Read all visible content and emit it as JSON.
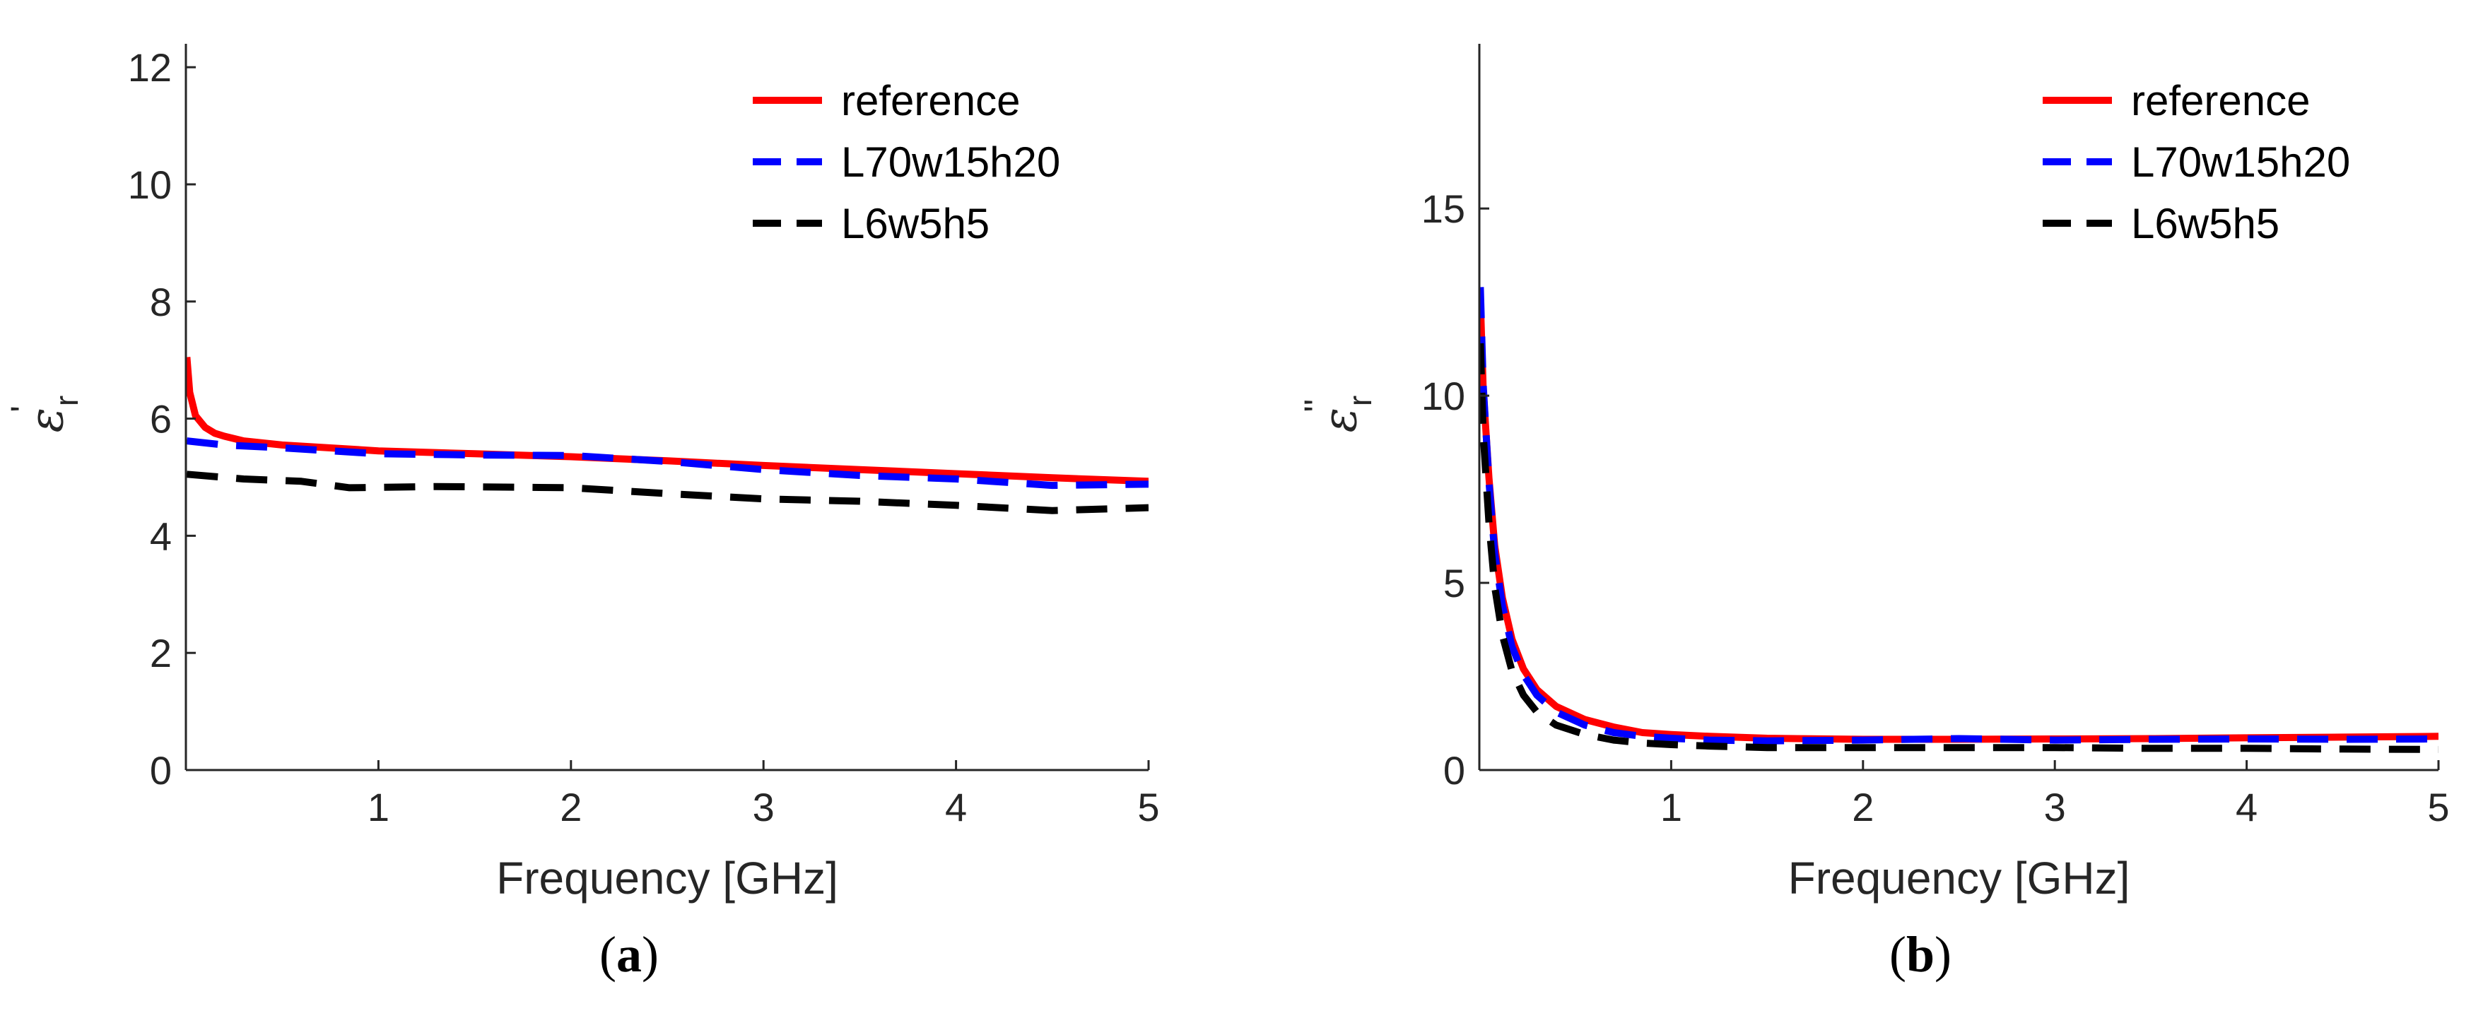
{
  "chart_data": [
    {
      "type": "line",
      "panel_label": "a",
      "xlabel": "Frequency [GHz]",
      "ylabel": {
        "symbol": "ε",
        "subscript": "r",
        "superscript": "'"
      },
      "xlim": [
        0,
        5
      ],
      "ylim": [
        0,
        12.4
      ],
      "xticks": [
        1,
        2,
        3,
        4,
        5
      ],
      "yticks": [
        0,
        2,
        4,
        6,
        8,
        10,
        12
      ],
      "legend_position": "top-right",
      "series": [
        {
          "name": "reference",
          "color": "#ff0000",
          "style": "solid",
          "x": [
            0.005,
            0.02,
            0.05,
            0.1,
            0.15,
            0.2,
            0.3,
            0.5,
            0.75,
            1.0,
            1.5,
            2.0,
            2.5,
            3.0,
            3.5,
            4.0,
            4.5,
            5.0
          ],
          "y": [
            7.05,
            6.45,
            6.05,
            5.85,
            5.75,
            5.7,
            5.62,
            5.55,
            5.5,
            5.45,
            5.4,
            5.35,
            5.28,
            5.2,
            5.13,
            5.06,
            4.99,
            4.93
          ]
        },
        {
          "name": "L70w15h20",
          "color": "#0000ff",
          "style": "dashed",
          "x": [
            0.005,
            0.2,
            0.5,
            1.0,
            1.5,
            2.0,
            2.5,
            3.0,
            3.5,
            4.0,
            4.5,
            5.0
          ],
          "y": [
            5.62,
            5.55,
            5.5,
            5.4,
            5.38,
            5.37,
            5.27,
            5.13,
            5.03,
            4.97,
            4.86,
            4.88
          ]
        },
        {
          "name": "L6w5h5",
          "color": "#000000",
          "style": "dashed",
          "x": [
            0.005,
            0.3,
            0.6,
            0.85,
            1.3,
            2.0,
            2.5,
            3.0,
            3.5,
            4.0,
            4.5,
            5.0
          ],
          "y": [
            5.05,
            4.97,
            4.93,
            4.82,
            4.84,
            4.82,
            4.72,
            4.63,
            4.59,
            4.52,
            4.43,
            4.48
          ]
        }
      ]
    },
    {
      "type": "line",
      "panel_label": "b",
      "xlabel": "Frequency [GHz]",
      "ylabel": {
        "symbol": "ε",
        "subscript": "r",
        "superscript": "''"
      },
      "xlim": [
        0,
        5
      ],
      "ylim": [
        0,
        19.4
      ],
      "xticks": [
        1,
        2,
        3,
        4,
        5
      ],
      "yticks": [
        0,
        5,
        10,
        15
      ],
      "legend_position": "top-right",
      "series": [
        {
          "name": "reference",
          "color": "#ff0000",
          "style": "solid",
          "x": [
            0.005,
            0.02,
            0.05,
            0.08,
            0.12,
            0.17,
            0.23,
            0.3,
            0.4,
            0.55,
            0.7,
            0.85,
            1.0,
            1.2,
            1.5,
            2.0,
            2.5,
            3.0,
            3.5,
            4.0,
            4.5,
            5.0
          ],
          "y": [
            12.6,
            10.2,
            7.8,
            6.0,
            4.6,
            3.5,
            2.7,
            2.15,
            1.7,
            1.35,
            1.15,
            1.0,
            0.95,
            0.9,
            0.85,
            0.82,
            0.82,
            0.83,
            0.84,
            0.86,
            0.88,
            0.9
          ]
        },
        {
          "name": "L70w15h20",
          "color": "#0000ff",
          "style": "dashed",
          "x": [
            0.005,
            0.02,
            0.05,
            0.08,
            0.12,
            0.17,
            0.23,
            0.3,
            0.4,
            0.55,
            0.7,
            0.85,
            1.0,
            1.2,
            1.5,
            2.0,
            2.5,
            3.0,
            3.5,
            4.0,
            4.5,
            5.0
          ],
          "y": [
            12.9,
            10.3,
            7.7,
            5.8,
            4.4,
            3.3,
            2.55,
            2.0,
            1.55,
            1.2,
            1.0,
            0.9,
            0.85,
            0.8,
            0.78,
            0.8,
            0.84,
            0.8,
            0.82,
            0.83,
            0.82,
            0.83
          ]
        },
        {
          "name": "L6w5h5",
          "color": "#000000",
          "style": "dashed",
          "x": [
            0.005,
            0.02,
            0.05,
            0.08,
            0.12,
            0.17,
            0.23,
            0.3,
            0.4,
            0.55,
            0.7,
            0.85,
            1.0,
            1.2,
            1.5,
            2.0,
            2.5,
            3.0,
            3.5,
            4.0,
            4.5,
            5.0
          ],
          "y": [
            11.4,
            9.0,
            6.6,
            4.9,
            3.6,
            2.65,
            2.0,
            1.55,
            1.2,
            0.95,
            0.8,
            0.72,
            0.68,
            0.64,
            0.6,
            0.6,
            0.6,
            0.6,
            0.58,
            0.58,
            0.56,
            0.55
          ]
        }
      ]
    }
  ]
}
